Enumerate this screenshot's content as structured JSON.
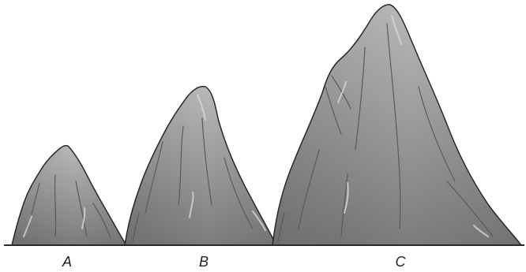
{
  "mountains": [
    {
      "label": "A"
    },
    {
      "label": "B"
    },
    {
      "label": "C"
    }
  ]
}
